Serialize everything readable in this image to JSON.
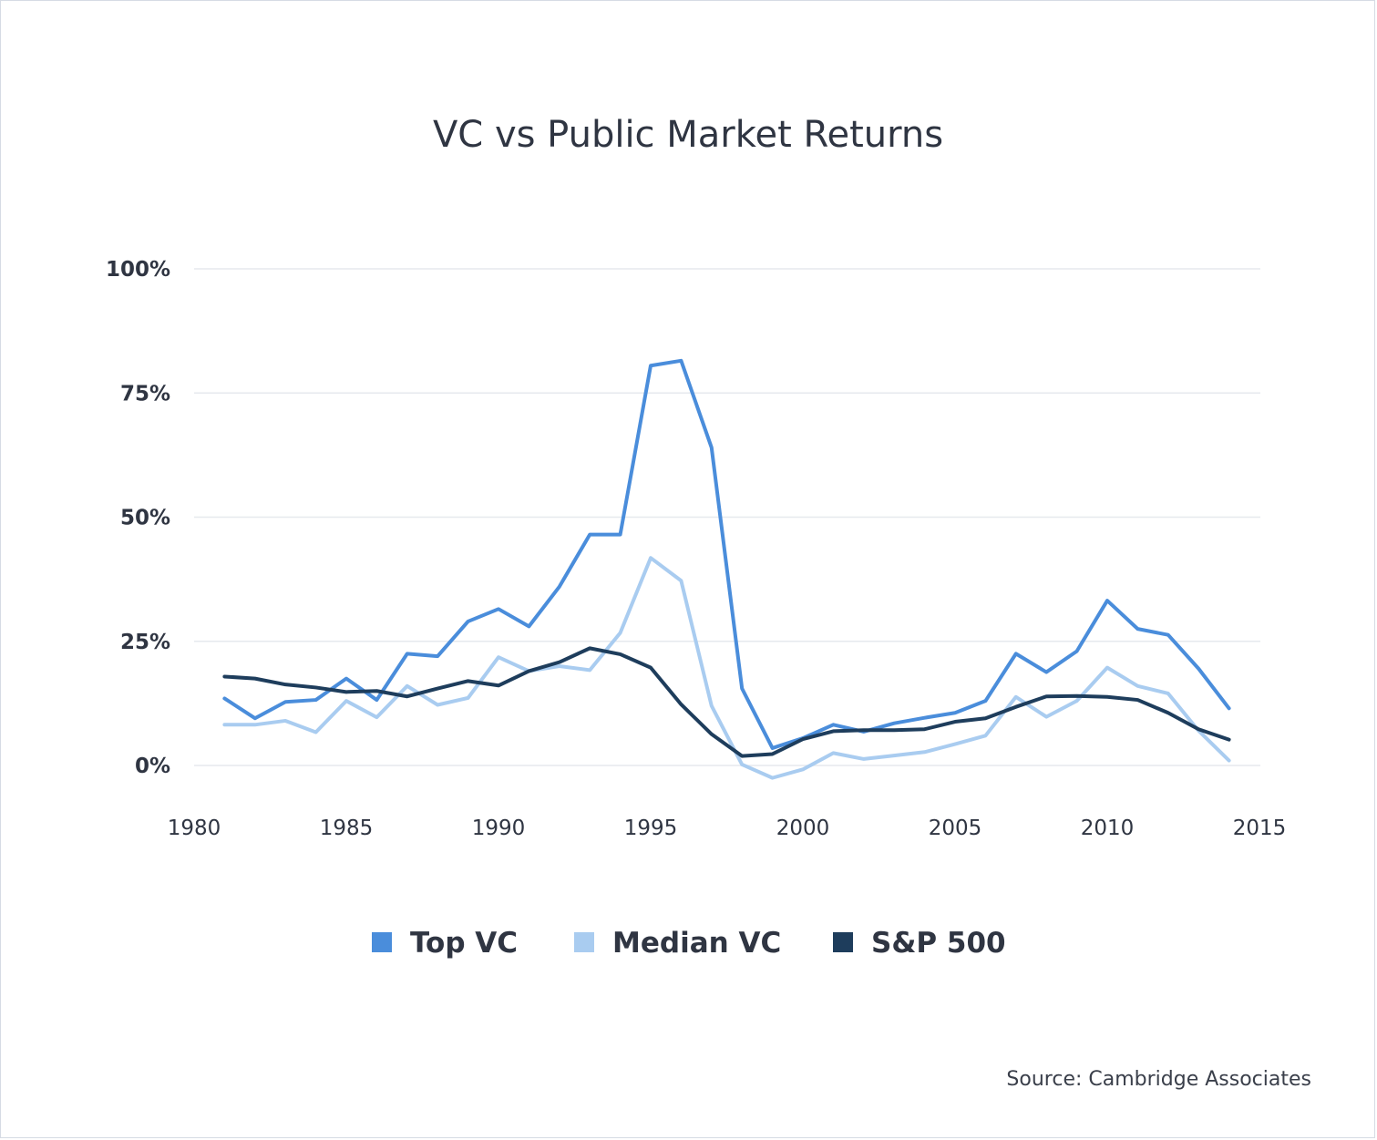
{
  "chart_data": {
    "type": "line",
    "title": "VC vs Public Market Returns",
    "xlabel": "",
    "ylabel": "",
    "xlim": [
      1980,
      2015
    ],
    "ylim": [
      -5,
      100
    ],
    "y_ticks": [
      {
        "value": 100,
        "label": "100%"
      },
      {
        "value": 75,
        "label": "75%"
      },
      {
        "value": 50,
        "label": "50%"
      },
      {
        "value": 25,
        "label": "25%"
      },
      {
        "value": 0,
        "label": "0%"
      }
    ],
    "x_ticks": [
      {
        "value": 1980,
        "label": "1980"
      },
      {
        "value": 1985,
        "label": "1985"
      },
      {
        "value": 1990,
        "label": "1990"
      },
      {
        "value": 1995,
        "label": "1995"
      },
      {
        "value": 2000,
        "label": "2000"
      },
      {
        "value": 2005,
        "label": "2005"
      },
      {
        "value": 2010,
        "label": "2010"
      },
      {
        "value": 2015,
        "label": "2015"
      }
    ],
    "x": [
      1981,
      1982,
      1983,
      1984,
      1985,
      1986,
      1987,
      1988,
      1989,
      1990,
      1991,
      1992,
      1993,
      1994,
      1995,
      1996,
      1997,
      1998,
      1999,
      2000,
      2001,
      2002,
      2003,
      2004,
      2005,
      2006,
      2007,
      2008,
      2009,
      2010,
      2011,
      2012,
      2013,
      2014
    ],
    "series": [
      {
        "name": "Top VC",
        "color": "#4a8ddb",
        "values": [
          13.5,
          9.5,
          12.8,
          13.2,
          17.5,
          13.2,
          22.5,
          22,
          29,
          31.5,
          28,
          36,
          46.5,
          46.5,
          80.5,
          81.5,
          64,
          15.5,
          3.5,
          5.5,
          8.2,
          6.8,
          8.5,
          9.6,
          10.6,
          13,
          22.5,
          18.8,
          23,
          33.2,
          27.5,
          26.3,
          19.5,
          11.5
        ]
      },
      {
        "name": "Median VC",
        "color": "#a9ccf0",
        "values": [
          8.2,
          8.2,
          9,
          6.7,
          13,
          9.7,
          16,
          12.2,
          13.6,
          21.8,
          19,
          20,
          19.2,
          26.7,
          41.8,
          37.2,
          12,
          0.2,
          -2.5,
          -0.8,
          2.5,
          1.3,
          2,
          2.7,
          4.3,
          6,
          13.8,
          9.8,
          13,
          19.7,
          16,
          14.5,
          7,
          1
        ]
      },
      {
        "name": "S&P 500",
        "color": "#1e3d5c",
        "values": [
          17.9,
          17.5,
          16.3,
          15.7,
          14.8,
          15,
          13.9,
          15.5,
          17,
          16.1,
          19,
          20.8,
          23.6,
          22.4,
          19.7,
          12.3,
          6.3,
          1.9,
          2.3,
          5.3,
          6.9,
          7.1,
          7.1,
          7.3,
          8.8,
          9.5,
          11.8,
          13.9,
          14,
          13.8,
          13.2,
          10.6,
          7.3,
          5.2
        ]
      }
    ],
    "legend_position": "bottom-center",
    "grid": true
  },
  "footer": {
    "source": "Source: Cambridge Associates"
  }
}
